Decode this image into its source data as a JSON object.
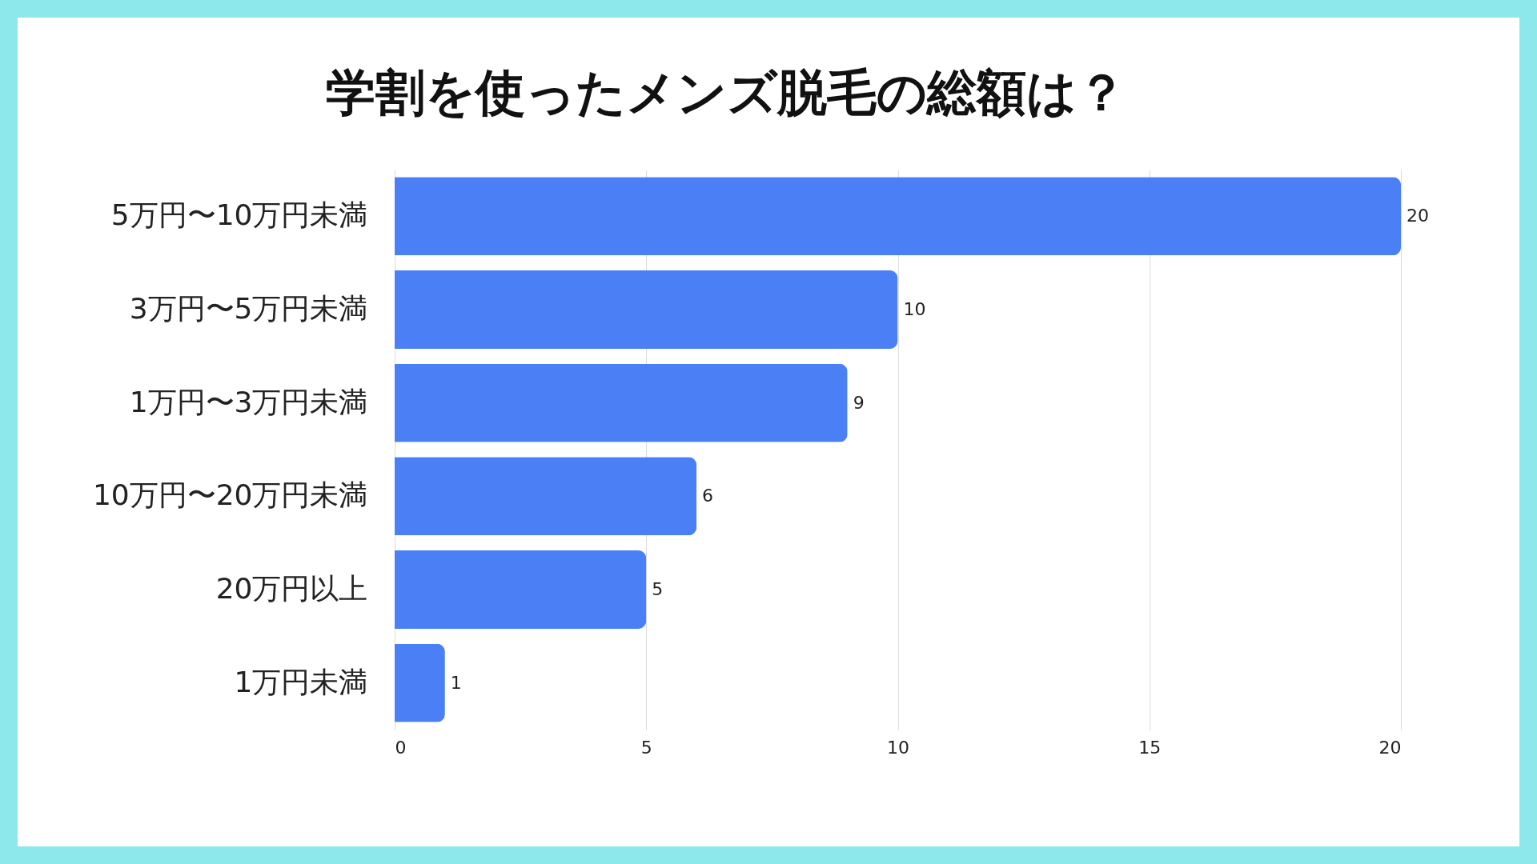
{
  "chart_data": {
    "type": "bar",
    "orientation": "horizontal",
    "title": "学割を使ったメンズ脱毛の総額は？",
    "categories": [
      "5万円〜10万円未満",
      "3万円〜5万円未満",
      "1万円〜3万円未満",
      "10万円〜20万円未満",
      "20万円以上",
      "1万円未満"
    ],
    "values": [
      20,
      10,
      9,
      6,
      5,
      1
    ],
    "color": "#4a7ff5",
    "xlim": [
      0,
      20
    ],
    "xticks": [
      0,
      5,
      10,
      15,
      20
    ],
    "grid": "x",
    "data_labels": true
  }
}
